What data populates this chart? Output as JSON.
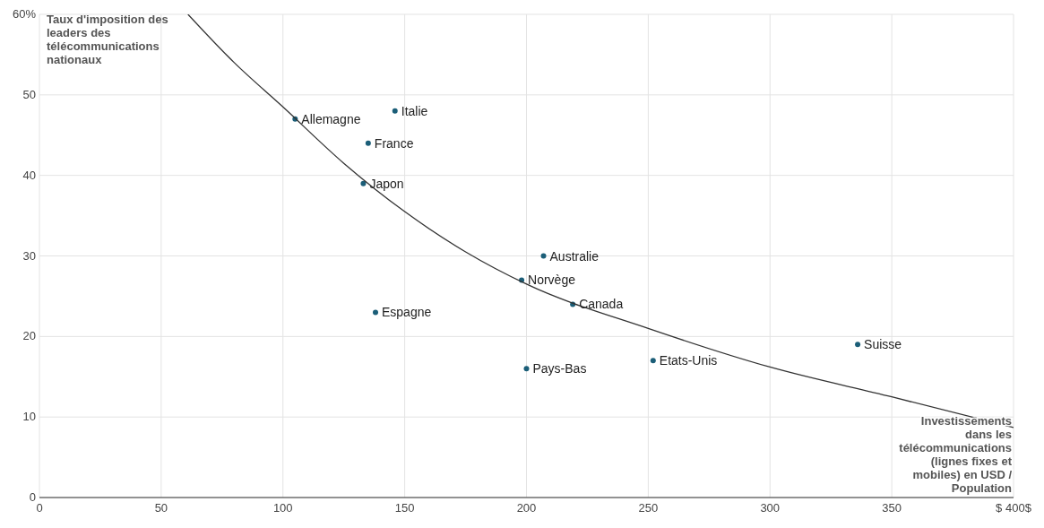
{
  "chart_data": {
    "type": "scatter",
    "ylabel": "Taux d'imposition des leaders des télécommunications nationaux",
    "xlabel": "Investissements dans les télécommunications (lignes fixes et mobiles) en USD / Population",
    "xlim": [
      0,
      400
    ],
    "xticks": [
      0,
      50,
      100,
      150,
      200,
      250,
      300,
      350,
      {
        "value": 400,
        "label": "$ 400$"
      }
    ],
    "ylim": [
      0,
      60
    ],
    "yticks": [
      0,
      10,
      20,
      30,
      40,
      50,
      {
        "value": 60,
        "label": "60%"
      }
    ],
    "grid": true,
    "series": [
      {
        "marker": "circle",
        "color": "#1b5e78",
        "x": [
          105,
          146,
          135,
          133,
          207,
          198,
          219,
          138,
          200,
          252,
          336
        ],
        "values": [
          47,
          48,
          44,
          39,
          30,
          27,
          24,
          23,
          16,
          17,
          19
        ]
      },
      {
        "type": "line",
        "color": "#333333",
        "x": [
          61,
          80,
          100,
          125,
          150,
          175,
          200,
          250,
          300,
          350,
          400
        ],
        "values": [
          60,
          54,
          48.5,
          41.5,
          35.5,
          30.5,
          26.5,
          21,
          16.2,
          12.5,
          8.7
        ]
      }
    ],
    "annotations": [
      {
        "text": "Allemagne",
        "x": 105,
        "y": 47
      },
      {
        "text": "Italie",
        "x": 146,
        "y": 48
      },
      {
        "text": "France",
        "x": 135,
        "y": 44
      },
      {
        "text": "Japon",
        "x": 133,
        "y": 39
      },
      {
        "text": "Australie",
        "x": 207,
        "y": 30
      },
      {
        "text": "Norvège",
        "x": 198,
        "y": 27
      },
      {
        "text": "Canada",
        "x": 219,
        "y": 24
      },
      {
        "text": "Espagne",
        "x": 138,
        "y": 23
      },
      {
        "text": "Pays-Bas",
        "x": 200,
        "y": 16
      },
      {
        "text": "Etats-Unis",
        "x": 252,
        "y": 17
      },
      {
        "text": "Suisse",
        "x": 336,
        "y": 19
      }
    ]
  }
}
